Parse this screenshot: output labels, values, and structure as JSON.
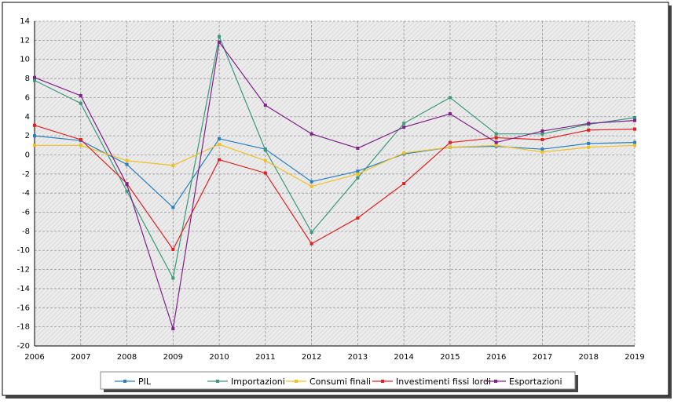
{
  "chart_data": {
    "type": "line",
    "categories": [
      "2006",
      "2007",
      "2008",
      "2009",
      "2010",
      "2011",
      "2012",
      "2013",
      "2014",
      "2015",
      "2016",
      "2017",
      "2018",
      "2019"
    ],
    "series": [
      {
        "name": "PIL",
        "color": "#2a7fc0",
        "values": [
          2.0,
          1.5,
          -1.0,
          -5.5,
          1.7,
          0.6,
          -2.8,
          -1.7,
          0.1,
          0.8,
          0.9,
          0.6,
          1.2,
          1.3
        ]
      },
      {
        "name": "Importazioni",
        "color": "#3a9a7a",
        "values": [
          7.8,
          5.4,
          -3.8,
          -12.9,
          12.4,
          0.5,
          -8.1,
          -2.4,
          3.3,
          6.0,
          2.2,
          2.2,
          3.2,
          3.9
        ]
      },
      {
        "name": "Consumi finali",
        "color": "#f0c020",
        "values": [
          1.0,
          1.0,
          -0.6,
          -1.1,
          1.1,
          -0.6,
          -3.3,
          -2.0,
          0.2,
          0.8,
          1.0,
          0.3,
          0.8,
          1.0
        ]
      },
      {
        "name": "Investimenti fissi lordi",
        "color": "#e02020",
        "values": [
          3.1,
          1.6,
          -3.0,
          -9.9,
          -0.5,
          -1.9,
          -9.3,
          -6.6,
          -3.0,
          1.3,
          1.8,
          1.6,
          2.6,
          2.7
        ]
      },
      {
        "name": "Esportazioni",
        "color": "#80208a",
        "values": [
          8.1,
          6.2,
          -3.1,
          -18.2,
          11.8,
          5.2,
          2.2,
          0.7,
          2.9,
          4.3,
          1.3,
          2.5,
          3.3,
          3.6
        ]
      }
    ],
    "ylim": [
      -20,
      14
    ],
    "yticks": [
      -20,
      -18,
      -16,
      -14,
      -12,
      -10,
      -8,
      -6,
      -4,
      -2,
      0,
      2,
      4,
      6,
      8,
      10,
      12,
      14
    ],
    "grid": true,
    "legend": "bottom"
  }
}
